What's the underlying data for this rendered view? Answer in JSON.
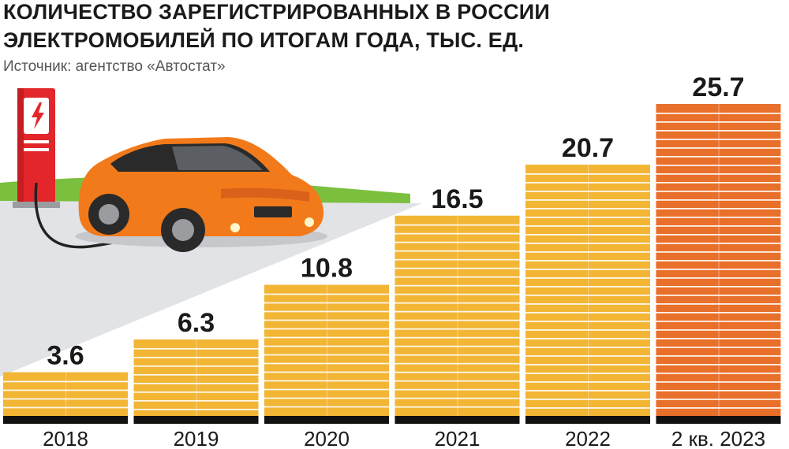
{
  "chart_data": {
    "type": "bar",
    "title": "КОЛИЧЕСТВО ЗАРЕГИСТРИРОВАННЫХ В РОССИИ ЭЛЕКТРОМОБИЛЕЙ ПО ИТОГАМ ГОДА, ТЫС. ЕД.",
    "title_lines": [
      "КОЛИЧЕСТВО ЗАРЕГИСТРИРОВАННЫХ В РОССИИ",
      "ЭЛЕКТРОМОБИЛЕЙ ПО ИТОГАМ ГОДА, ТЫС. ЕД."
    ],
    "subtitle": "Источник: агентство «Автостат»",
    "categories": [
      "2018",
      "2019",
      "2020",
      "2021",
      "2022",
      "2 кв. 2023"
    ],
    "values": [
      3.6,
      6.3,
      10.8,
      16.5,
      20.7,
      25.7
    ],
    "value_labels": [
      "3.6",
      "6.3",
      "10.8",
      "16.5",
      "20.7",
      "25.7"
    ],
    "ylim": [
      0,
      25.7
    ],
    "grid": false,
    "legend": "none",
    "colors": {
      "bar": "#f2b534",
      "bar_highlight": "#e8702a",
      "stripe": "#ffffff",
      "baseline": "#111111",
      "label": "#1a1a1a",
      "road": "#e1e3e6",
      "grass": "#7bbf3f",
      "car_body": "#f27a1a",
      "station": "#e3262b"
    },
    "illustration_icons": [
      "charging-station-icon",
      "electric-car-icon",
      "lightning-icon"
    ]
  }
}
